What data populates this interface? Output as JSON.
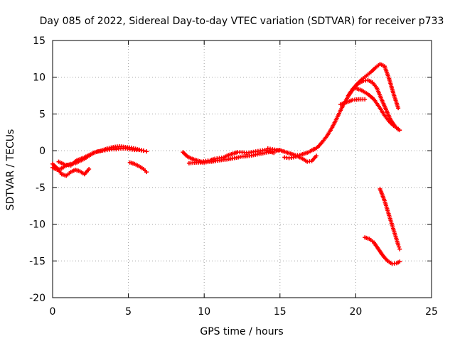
{
  "chart_data": {
    "type": "scatter",
    "title": "Day 085 of 2022, Sidereal Day-to-day VTEC variation (SDTVAR) for receiver p733",
    "xlabel": "GPS time / hours",
    "ylabel": "SDTVAR / TECUs",
    "xlim": [
      0,
      25
    ],
    "ylim": [
      -20,
      15
    ],
    "xticks": [
      0,
      5,
      10,
      15,
      20,
      25
    ],
    "yticks": [
      -20,
      -15,
      -10,
      -5,
      0,
      5,
      10,
      15
    ],
    "xtick_labels": [
      "0",
      "5",
      "10",
      "15",
      "20",
      "25"
    ],
    "ytick_labels": [
      "-20",
      "-15",
      "-10",
      "-5",
      "0",
      "5",
      "10",
      "15"
    ],
    "grid": true,
    "marker": "+",
    "color": "#ff0000",
    "series": [
      {
        "name": "track-1",
        "x": [
          0.0,
          0.3,
          0.6,
          0.9,
          1.2,
          1.5,
          1.8,
          2.1,
          2.4,
          2.7,
          3.0,
          3.3,
          3.6,
          3.9,
          4.2,
          4.5,
          4.8,
          5.1,
          5.4,
          5.7,
          6.0,
          6.2
        ],
        "y": [
          -2.3,
          -2.6,
          -2.4,
          -2.0,
          -1.8,
          -1.7,
          -1.4,
          -1.1,
          -0.7,
          -0.3,
          -0.1,
          0.0,
          0.1,
          0.2,
          0.2,
          0.3,
          0.3,
          0.2,
          0.1,
          0.1,
          0.0,
          -0.1
        ]
      },
      {
        "name": "track-2",
        "x": [
          0.0,
          0.3,
          0.6,
          0.9,
          1.2,
          1.5,
          1.8,
          2.1,
          2.4
        ],
        "y": [
          -1.8,
          -2.4,
          -3.2,
          -3.4,
          -2.9,
          -2.6,
          -2.8,
          -3.2,
          -2.5
        ]
      },
      {
        "name": "track-3",
        "x": [
          0.4,
          0.8,
          1.2,
          1.6,
          2.0,
          2.4,
          2.8,
          3.2,
          3.6,
          4.0,
          4.4,
          4.8,
          5.2,
          5.6,
          6.0
        ],
        "y": [
          -1.5,
          -1.9,
          -2.0,
          -1.3,
          -1.0,
          -0.6,
          -0.2,
          0.0,
          0.3,
          0.5,
          0.6,
          0.5,
          0.4,
          0.2,
          0.0
        ]
      },
      {
        "name": "track-4",
        "x": [
          5.1,
          5.4,
          5.7,
          6.0,
          6.2
        ],
        "y": [
          -1.6,
          -1.8,
          -2.1,
          -2.5,
          -2.9
        ]
      },
      {
        "name": "track-5",
        "x": [
          8.6,
          8.9,
          9.2,
          9.5,
          9.8,
          10.1,
          10.4,
          10.7,
          11.0,
          11.3,
          11.6,
          11.9,
          12.2,
          12.5,
          12.8,
          13.1,
          13.4,
          13.7,
          14.0,
          14.3,
          14.6
        ],
        "y": [
          -0.2,
          -0.8,
          -1.1,
          -1.3,
          -1.5,
          -1.4,
          -1.3,
          -1.1,
          -1.0,
          -0.9,
          -0.6,
          -0.4,
          -0.2,
          -0.2,
          -0.3,
          -0.2,
          -0.1,
          0.0,
          0.1,
          -0.1,
          -0.3
        ]
      },
      {
        "name": "track-6",
        "x": [
          9.0,
          9.5,
          10.0,
          10.5,
          11.0,
          11.5,
          12.0,
          12.5,
          13.0,
          13.5,
          14.0,
          14.5,
          15.0
        ],
        "y": [
          -1.7,
          -1.6,
          -1.6,
          -1.5,
          -1.3,
          -1.2,
          -1.0,
          -0.8,
          -0.7,
          -0.5,
          -0.3,
          -0.1,
          0.1
        ]
      },
      {
        "name": "track-7",
        "x": [
          14.2,
          14.5,
          14.8,
          15.1,
          15.4,
          15.7,
          16.0,
          16.3,
          16.6,
          16.9,
          17.2
        ],
        "y": [
          0.3,
          0.2,
          0.1,
          0.0,
          -0.2,
          -0.4,
          -0.6,
          -0.6,
          -0.4,
          -0.2,
          0.2
        ]
      },
      {
        "name": "track-8",
        "x": [
          15.3,
          15.6,
          15.9,
          16.2,
          16.5,
          16.8,
          17.1,
          17.4
        ],
        "y": [
          -0.9,
          -1.0,
          -0.9,
          -0.8,
          -1.1,
          -1.5,
          -1.4,
          -0.7
        ]
      },
      {
        "name": "track-9",
        "x": [
          17.2,
          17.5,
          17.8,
          18.1,
          18.4,
          18.7,
          19.0,
          19.3,
          19.6,
          19.9,
          20.2,
          20.5,
          20.8,
          21.1,
          21.4,
          21.7,
          22.0,
          22.3,
          22.6,
          22.9
        ],
        "y": [
          0.1,
          0.5,
          1.2,
          2.0,
          3.0,
          4.2,
          5.5,
          6.7,
          7.7,
          8.6,
          9.2,
          9.5,
          9.6,
          9.3,
          8.5,
          7.0,
          5.6,
          4.2,
          3.3,
          2.8
        ]
      },
      {
        "name": "track-10",
        "x": [
          19.5,
          19.8,
          20.1,
          20.4,
          20.7,
          21.0,
          21.3,
          21.6,
          21.9,
          22.2,
          22.5,
          22.8
        ],
        "y": [
          7.5,
          8.4,
          9.1,
          9.7,
          10.2,
          10.7,
          11.3,
          11.8,
          11.5,
          9.8,
          7.7,
          5.8
        ]
      },
      {
        "name": "track-11",
        "x": [
          20.0,
          20.4,
          20.8,
          21.2,
          21.6,
          21.9,
          22.2,
          22.5,
          22.8
        ],
        "y": [
          8.5,
          8.2,
          7.7,
          7.0,
          5.8,
          4.8,
          4.0,
          3.4,
          2.9
        ]
      },
      {
        "name": "track-12",
        "x": [
          19.0,
          19.4,
          19.8,
          20.2,
          20.6
        ],
        "y": [
          6.3,
          6.6,
          6.9,
          7.0,
          7.0
        ]
      },
      {
        "name": "track-13",
        "x": [
          21.6,
          21.9,
          22.2,
          22.5,
          22.8,
          22.9
        ],
        "y": [
          -5.2,
          -6.8,
          -8.8,
          -10.8,
          -12.8,
          -13.4
        ]
      },
      {
        "name": "track-14",
        "x": [
          20.6,
          20.9,
          21.2,
          21.5,
          21.8,
          22.1,
          22.4,
          22.7,
          22.9
        ],
        "y": [
          -11.8,
          -12.0,
          -12.5,
          -13.4,
          -14.3,
          -15.0,
          -15.4,
          -15.3,
          -15.1
        ]
      }
    ]
  }
}
